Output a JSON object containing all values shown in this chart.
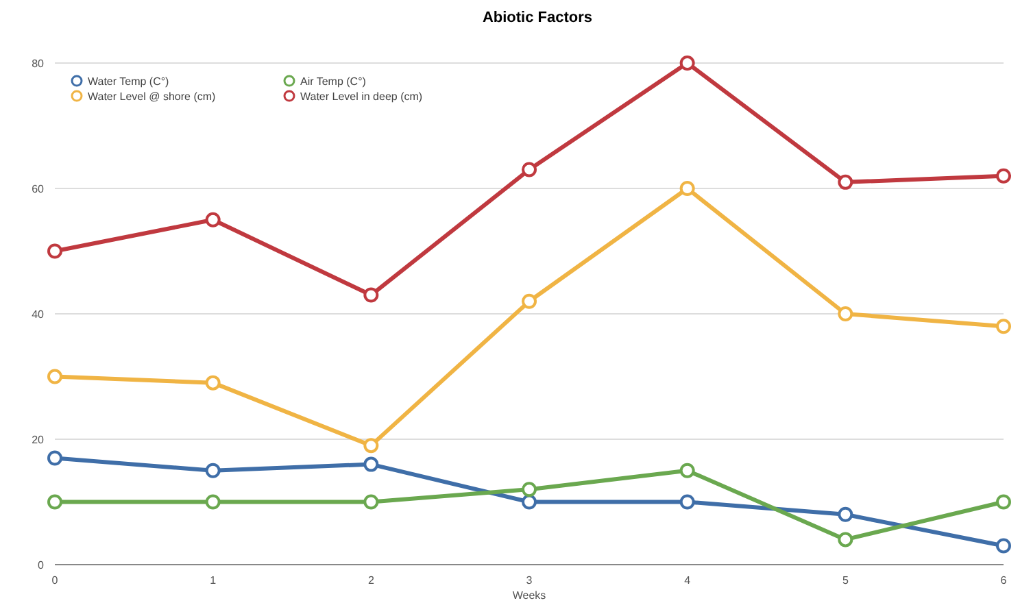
{
  "chart_data": {
    "type": "line",
    "title": "Abiotic Factors",
    "xlabel": "Weeks",
    "x": [
      0,
      1,
      2,
      3,
      4,
      5,
      6
    ],
    "xlim": [
      0,
      6
    ],
    "xticks": [
      0,
      1,
      2,
      3,
      4,
      5,
      6
    ],
    "ylim": [
      0,
      80
    ],
    "yticks": [
      0,
      20,
      40,
      60,
      80
    ],
    "grid": "y",
    "legend": "top left",
    "marker": "circle",
    "line_style": "solid",
    "series": [
      {
        "name": "Water Temp (C°)",
        "color": "#3f6ea8",
        "values": [
          17,
          15,
          16,
          10,
          10,
          8,
          3
        ]
      },
      {
        "name": "Air Temp (C°)",
        "color": "#6aa84f",
        "values": [
          10,
          10,
          10,
          12,
          15,
          4,
          10
        ]
      },
      {
        "name": "Water Level @ shore (cm)",
        "color": "#f0b444",
        "values": [
          30,
          29,
          19,
          42,
          60,
          40,
          38
        ]
      },
      {
        "name": "Water Level in deep (cm)",
        "color": "#c0393f",
        "values": [
          50,
          55,
          43,
          63,
          80,
          61,
          62
        ]
      }
    ]
  }
}
